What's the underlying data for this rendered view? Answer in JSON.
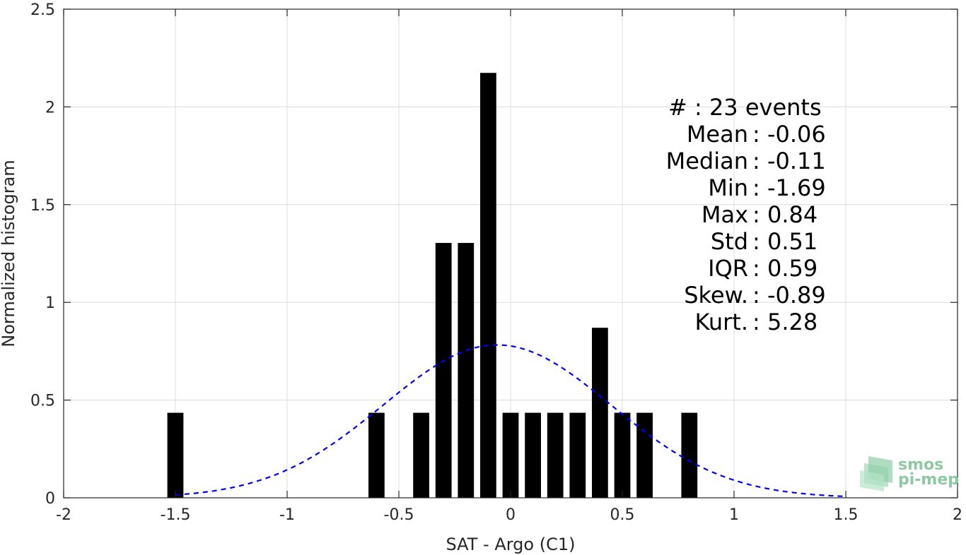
{
  "chart_data": {
    "type": "bar",
    "xlabel": "SAT - Argo (C1)",
    "ylabel": "Normalized histogram",
    "xlim": [
      -2,
      2
    ],
    "ylim": [
      0,
      2.5
    ],
    "grid": true,
    "xticks": [
      -2,
      -1.5,
      -1,
      -0.5,
      0,
      0.5,
      1,
      1.5,
      2
    ],
    "xtick_labels": [
      "-2",
      "-1.5",
      "-1",
      "-0.5",
      "0",
      "0.5",
      "1",
      "1.5",
      "2"
    ],
    "yticks": [
      0,
      0.5,
      1,
      1.5,
      2,
      2.5
    ],
    "ytick_labels": [
      "0",
      "0.5",
      "1",
      "1.5",
      "2",
      "2.5"
    ],
    "bin_width": 0.1,
    "bars": [
      {
        "x": -1.5,
        "value": 0.435
      },
      {
        "x": -0.6,
        "value": 0.435
      },
      {
        "x": -0.4,
        "value": 0.435
      },
      {
        "x": -0.3,
        "value": 1.304
      },
      {
        "x": -0.2,
        "value": 1.304
      },
      {
        "x": -0.1,
        "value": 2.174
      },
      {
        "x": 0.0,
        "value": 0.435
      },
      {
        "x": 0.1,
        "value": 0.435
      },
      {
        "x": 0.2,
        "value": 0.435
      },
      {
        "x": 0.3,
        "value": 0.435
      },
      {
        "x": 0.4,
        "value": 0.87
      },
      {
        "x": 0.5,
        "value": 0.435
      },
      {
        "x": 0.6,
        "value": 0.435
      },
      {
        "x": 0.8,
        "value": 0.435
      }
    ],
    "normal_fit": {
      "mean": -0.06,
      "std": 0.51,
      "x_range": [
        -1.5,
        1.5
      ],
      "color": "#0000ff",
      "style": "dashed"
    },
    "bar_color": "#000000",
    "stats": [
      {
        "label": "#  : 23 events",
        "anchor": "left"
      },
      {
        "label": "Mean : -0.06 ",
        "anchor": "colon"
      },
      {
        "label": "Median : -0.11 ",
        "anchor": "colon"
      },
      {
        "label": "Min : -1.69 ",
        "anchor": "colon"
      },
      {
        "label": "Max : 0.84 ",
        "anchor": "colon"
      },
      {
        "label": "Std : 0.51 ",
        "anchor": "colon"
      },
      {
        "label": "IQR : 0.59 ",
        "anchor": "colon"
      },
      {
        "label": "Skew. : -0.89",
        "anchor": "colon"
      },
      {
        "label": "Kurt. : 5.28",
        "anchor": "colon"
      }
    ]
  },
  "logo": {
    "line1": "smos",
    "line2": "pi-mep",
    "color": "#8fc9a3"
  }
}
